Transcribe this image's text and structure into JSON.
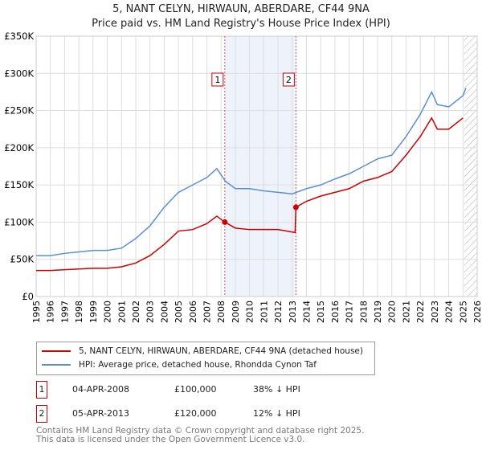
{
  "chart_data": {
    "type": "line",
    "title": "5, NANT CELYN, HIRWAUN, ABERDARE, CF44 9NA",
    "subtitle": "Price paid vs. HM Land Registry's House Price Index (HPI)",
    "xlim": [
      1995,
      2026
    ],
    "ylim": [
      0,
      350000
    ],
    "y_ticks": [
      0,
      50000,
      100000,
      150000,
      200000,
      250000,
      300000,
      350000
    ],
    "y_tick_labels": [
      "£0",
      "£50K",
      "£100K",
      "£150K",
      "£200K",
      "£250K",
      "£300K",
      "£350K"
    ],
    "x_ticks": [
      1995,
      1996,
      1997,
      1998,
      1999,
      2000,
      2001,
      2002,
      2003,
      2004,
      2005,
      2006,
      2007,
      2008,
      2009,
      2010,
      2011,
      2012,
      2013,
      2014,
      2015,
      2016,
      2017,
      2018,
      2019,
      2020,
      2021,
      2022,
      2023,
      2024,
      2025,
      2026
    ],
    "grid": true,
    "shaded_range": [
      2008.26,
      2013.26
    ],
    "forecast_from": 2025.1,
    "series": [
      {
        "name": "5, NANT CELYN, HIRWAUN, ABERDARE, CF44 9NA (detached house)",
        "color": "#cc0000",
        "x": [
          1995,
          1996,
          1997,
          1998,
          1999,
          2000,
          2001,
          2002,
          2003,
          2004,
          2005,
          2006,
          2007,
          2007.7,
          2008.26,
          2009,
          2010,
          2011,
          2012,
          2013.2,
          2013.26,
          2014,
          2015,
          2016,
          2017,
          2018,
          2019,
          2020,
          2021,
          2022,
          2022.8,
          2023.2,
          2024,
          2025
        ],
        "y": [
          35000,
          35000,
          36000,
          37000,
          38000,
          38000,
          40000,
          45000,
          55000,
          70000,
          88000,
          90000,
          98000,
          108000,
          100000,
          92000,
          90000,
          90000,
          90000,
          86000,
          120000,
          128000,
          135000,
          140000,
          145000,
          155000,
          160000,
          168000,
          190000,
          215000,
          240000,
          225000,
          225000,
          240000
        ]
      },
      {
        "name": "HPI: Average price, detached house, Rhondda Cynon Taf",
        "color": "#5b8fd0",
        "x": [
          1995,
          1996,
          1997,
          1998,
          1999,
          2000,
          2001,
          2002,
          2003,
          2004,
          2005,
          2006,
          2007,
          2007.7,
          2008.3,
          2009,
          2010,
          2011,
          2012,
          2013,
          2014,
          2015,
          2016,
          2017,
          2018,
          2019,
          2020,
          2021,
          2022,
          2022.8,
          2023.2,
          2024,
          2025,
          2025.2
        ],
        "y": [
          55000,
          55000,
          58000,
          60000,
          62000,
          62000,
          65000,
          78000,
          95000,
          120000,
          140000,
          150000,
          160000,
          172000,
          155000,
          145000,
          145000,
          142000,
          140000,
          138000,
          145000,
          150000,
          158000,
          165000,
          175000,
          185000,
          190000,
          215000,
          245000,
          275000,
          258000,
          255000,
          270000,
          280000
        ]
      }
    ],
    "annotations": [
      {
        "label": "1",
        "x": 2008.26,
        "y": 100000
      },
      {
        "label": "2",
        "x": 2013.26,
        "y": 120000
      }
    ]
  },
  "legend": [
    "5, NANT CELYN, HIRWAUN, ABERDARE, CF44 9NA (detached house)",
    "HPI: Average price, detached house, Rhondda Cynon Taf"
  ],
  "sales": [
    {
      "num": "1",
      "date": "04-APR-2008",
      "price": "£100,000",
      "hpi": "38% ↓ HPI"
    },
    {
      "num": "2",
      "date": "05-APR-2013",
      "price": "£120,000",
      "hpi": "12% ↓ HPI"
    }
  ],
  "footer": [
    "Contains HM Land Registry data © Crown copyright and database right 2025.",
    "This data is licensed under the Open Government Licence v3.0."
  ]
}
